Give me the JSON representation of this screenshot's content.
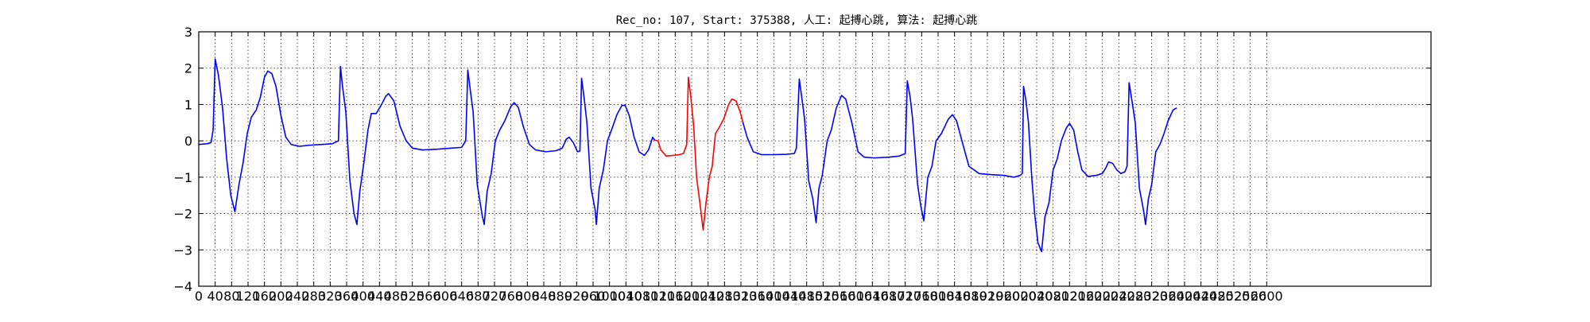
{
  "chart_data": {
    "type": "line",
    "title": "Rec_no: 107, Start: 375388, 人工: 起搏心跳, 算法: 起搏心跳",
    "xlabel": "",
    "ylabel": "",
    "xlim": [
      0,
      3000
    ],
    "ylim": [
      -4,
      3
    ],
    "grid": true,
    "x_ticks": [
      0,
      40,
      80,
      120,
      160,
      200,
      240,
      280,
      320,
      360,
      400,
      440,
      480,
      520,
      560,
      600,
      640,
      680,
      720,
      760,
      800,
      840,
      880,
      920,
      960,
      1000,
      1040,
      1080,
      1120,
      1160,
      1200,
      1240,
      1280,
      1320,
      1360,
      1400,
      1440,
      1480,
      1520,
      1560,
      1600,
      1640,
      1680,
      1720,
      1760,
      1800,
      1840,
      1880,
      1920,
      1960,
      2000,
      2040,
      2080,
      2120,
      2160,
      2200,
      2240,
      2280,
      2320,
      2360,
      2400,
      2440,
      2480,
      2520,
      2560,
      2600
    ],
    "x_tick_labels": [
      "0",
      "40",
      "80",
      "120",
      "160",
      "200",
      "240",
      "280",
      "320",
      "360",
      "400",
      "440",
      "480",
      "520",
      "560",
      "600",
      "640",
      "680",
      "720",
      "760",
      "800",
      "840",
      "880",
      "920",
      "960",
      "1000",
      "1040",
      "1080",
      "1120",
      "1160",
      "1200",
      "1240",
      "1280",
      "1320",
      "1360",
      "1400",
      "1440",
      "1480",
      "1520",
      "1560",
      "1600",
      "1640",
      "1680",
      "1720",
      "1760",
      "1800",
      "1840",
      "1880",
      "1920",
      "1960",
      "2000",
      "2040",
      "2080",
      "2120",
      "2160",
      "2200",
      "2240",
      "2280",
      "2320",
      "2360",
      "2400",
      "2440",
      "2480",
      "2520",
      "2560",
      "2600"
    ],
    "y_ticks": [
      3,
      2,
      1,
      0,
      -1,
      -2,
      -3,
      -4
    ],
    "y_tick_labels": [
      "3",
      "2",
      "1",
      "0",
      "−1",
      "−2",
      "−3",
      "−4"
    ],
    "series": [
      {
        "color": "#0000ff",
        "segment": "before",
        "points": [
          [
            0,
            -0.1
          ],
          [
            20,
            -0.08
          ],
          [
            30,
            -0.05
          ],
          [
            35,
            0.3
          ],
          [
            40,
            2.25
          ],
          [
            48,
            1.8
          ],
          [
            58,
            0.9
          ],
          [
            68,
            -0.5
          ],
          [
            78,
            -1.5
          ],
          [
            88,
            -1.95
          ],
          [
            98,
            -1.2
          ],
          [
            108,
            -0.6
          ],
          [
            118,
            0.2
          ],
          [
            128,
            0.65
          ],
          [
            140,
            0.85
          ],
          [
            150,
            1.2
          ],
          [
            160,
            1.75
          ],
          [
            168,
            1.92
          ],
          [
            178,
            1.85
          ],
          [
            188,
            1.5
          ],
          [
            200,
            0.7
          ],
          [
            212,
            0.1
          ],
          [
            225,
            -0.1
          ],
          [
            245,
            -0.15
          ],
          [
            270,
            -0.12
          ],
          [
            300,
            -0.1
          ],
          [
            325,
            -0.08
          ],
          [
            340,
            0.0
          ],
          [
            345,
            2.05
          ],
          [
            350,
            1.5
          ],
          [
            358,
            0.8
          ],
          [
            368,
            -1.1
          ],
          [
            378,
            -2.0
          ],
          [
            385,
            -2.3
          ],
          [
            392,
            -1.4
          ],
          [
            402,
            -0.6
          ],
          [
            412,
            0.3
          ],
          [
            420,
            0.75
          ],
          [
            432,
            0.75
          ],
          [
            445,
            1.0
          ],
          [
            455,
            1.22
          ],
          [
            462,
            1.3
          ],
          [
            475,
            1.1
          ],
          [
            490,
            0.4
          ],
          [
            505,
            0.0
          ],
          [
            520,
            -0.2
          ],
          [
            545,
            -0.25
          ],
          [
            580,
            -0.23
          ],
          [
            615,
            -0.2
          ],
          [
            640,
            -0.18
          ],
          [
            650,
            0.0
          ],
          [
            655,
            1.95
          ],
          [
            661,
            1.4
          ],
          [
            668,
            0.8
          ],
          [
            678,
            -1.2
          ],
          [
            690,
            -2.05
          ],
          [
            695,
            -2.3
          ],
          [
            702,
            -1.4
          ],
          [
            712,
            -0.9
          ],
          [
            722,
            0.0
          ],
          [
            732,
            0.28
          ],
          [
            745,
            0.55
          ],
          [
            760,
            0.95
          ],
          [
            768,
            1.05
          ],
          [
            778,
            0.92
          ],
          [
            790,
            0.4
          ],
          [
            805,
            -0.1
          ],
          [
            820,
            -0.25
          ],
          [
            845,
            -0.3
          ],
          [
            870,
            -0.27
          ],
          [
            885,
            -0.2
          ],
          [
            895,
            0.05
          ],
          [
            902,
            0.1
          ],
          [
            912,
            -0.05
          ],
          [
            922,
            -0.3
          ],
          [
            928,
            -0.28
          ],
          [
            932,
            1.72
          ],
          [
            938,
            1.2
          ],
          [
            945,
            0.5
          ],
          [
            955,
            -1.3
          ],
          [
            965,
            -1.9
          ],
          [
            968,
            -2.3
          ],
          [
            975,
            -1.3
          ],
          [
            985,
            -0.8
          ],
          [
            995,
            0.0
          ],
          [
            1005,
            0.3
          ],
          [
            1018,
            0.72
          ],
          [
            1030,
            0.97
          ],
          [
            1038,
            0.98
          ],
          [
            1048,
            0.7
          ],
          [
            1060,
            0.1
          ],
          [
            1072,
            -0.3
          ],
          [
            1085,
            -0.4
          ],
          [
            1095,
            -0.25
          ],
          [
            1105,
            0.1
          ],
          [
            1110,
            0.02
          ]
        ]
      },
      {
        "color": "#ff0000",
        "segment": "annotated-beat",
        "points": [
          [
            1110,
            0.02
          ],
          [
            1118,
            0.0
          ],
          [
            1125,
            -0.25
          ],
          [
            1138,
            -0.42
          ],
          [
            1155,
            -0.4
          ],
          [
            1170,
            -0.38
          ],
          [
            1180,
            -0.35
          ],
          [
            1188,
            -0.1
          ],
          [
            1192,
            1.75
          ],
          [
            1198,
            1.2
          ],
          [
            1205,
            0.4
          ],
          [
            1212,
            -1.0
          ],
          [
            1220,
            -1.7
          ],
          [
            1228,
            -2.45
          ],
          [
            1235,
            -1.7
          ],
          [
            1243,
            -1.0
          ],
          [
            1250,
            -0.7
          ],
          [
            1258,
            0.2
          ],
          [
            1266,
            0.35
          ],
          [
            1278,
            0.6
          ],
          [
            1290,
            1.0
          ],
          [
            1298,
            1.15
          ],
          [
            1308,
            1.1
          ],
          [
            1318,
            0.8
          ],
          [
            1325,
            0.5
          ]
        ]
      },
      {
        "color": "#0000ff",
        "segment": "after",
        "points": [
          [
            1325,
            0.5
          ],
          [
            1335,
            0.1
          ],
          [
            1350,
            -0.3
          ],
          [
            1370,
            -0.38
          ],
          [
            1400,
            -0.38
          ],
          [
            1430,
            -0.37
          ],
          [
            1450,
            -0.35
          ],
          [
            1455,
            -0.2
          ],
          [
            1462,
            1.7
          ],
          [
            1468,
            1.2
          ],
          [
            1475,
            0.6
          ],
          [
            1485,
            -1.1
          ],
          [
            1495,
            -1.6
          ],
          [
            1503,
            -2.25
          ],
          [
            1510,
            -1.3
          ],
          [
            1518,
            -0.95
          ],
          [
            1530,
            0.0
          ],
          [
            1540,
            0.3
          ],
          [
            1552,
            0.9
          ],
          [
            1565,
            1.25
          ],
          [
            1575,
            1.15
          ],
          [
            1590,
            0.5
          ],
          [
            1605,
            -0.3
          ],
          [
            1620,
            -0.45
          ],
          [
            1645,
            -0.47
          ],
          [
            1680,
            -0.45
          ],
          [
            1705,
            -0.42
          ],
          [
            1720,
            -0.35
          ],
          [
            1725,
            1.65
          ],
          [
            1732,
            1.2
          ],
          [
            1738,
            0.6
          ],
          [
            1750,
            -1.2
          ],
          [
            1758,
            -1.8
          ],
          [
            1765,
            -2.2
          ],
          [
            1775,
            -1.0
          ],
          [
            1785,
            -0.7
          ],
          [
            1795,
            0.0
          ],
          [
            1808,
            0.2
          ],
          [
            1825,
            0.6
          ],
          [
            1835,
            0.72
          ],
          [
            1845,
            0.55
          ],
          [
            1858,
            0.0
          ],
          [
            1875,
            -0.7
          ],
          [
            1900,
            -0.9
          ],
          [
            1930,
            -0.93
          ],
          [
            1960,
            -0.95
          ],
          [
            1985,
            -1.0
          ],
          [
            2000,
            -0.95
          ],
          [
            2005,
            -0.9
          ],
          [
            2008,
            1.5
          ],
          [
            2014,
            1.1
          ],
          [
            2020,
            0.5
          ],
          [
            2028,
            -1.0
          ],
          [
            2035,
            -2.0
          ],
          [
            2043,
            -2.8
          ],
          [
            2052,
            -3.05
          ],
          [
            2060,
            -2.1
          ],
          [
            2070,
            -1.7
          ],
          [
            2080,
            -0.8
          ],
          [
            2090,
            -0.5
          ],
          [
            2100,
            0.0
          ],
          [
            2112,
            0.35
          ],
          [
            2120,
            0.48
          ],
          [
            2130,
            0.3
          ],
          [
            2140,
            -0.3
          ],
          [
            2150,
            -0.8
          ],
          [
            2165,
            -0.98
          ],
          [
            2185,
            -0.95
          ],
          [
            2200,
            -0.9
          ],
          [
            2208,
            -0.75
          ],
          [
            2215,
            -0.58
          ],
          [
            2225,
            -0.62
          ],
          [
            2235,
            -0.8
          ],
          [
            2245,
            -0.9
          ],
          [
            2255,
            -0.85
          ],
          [
            2260,
            -0.7
          ],
          [
            2265,
            1.6
          ],
          [
            2272,
            1.1
          ],
          [
            2280,
            0.5
          ],
          [
            2290,
            -1.3
          ],
          [
            2300,
            -1.9
          ],
          [
            2305,
            -2.3
          ],
          [
            2312,
            -1.6
          ],
          [
            2320,
            -1.2
          ],
          [
            2330,
            -0.3
          ],
          [
            2340,
            -0.1
          ],
          [
            2350,
            0.2
          ],
          [
            2360,
            0.55
          ],
          [
            2372,
            0.85
          ],
          [
            2380,
            0.9
          ]
        ]
      }
    ]
  }
}
